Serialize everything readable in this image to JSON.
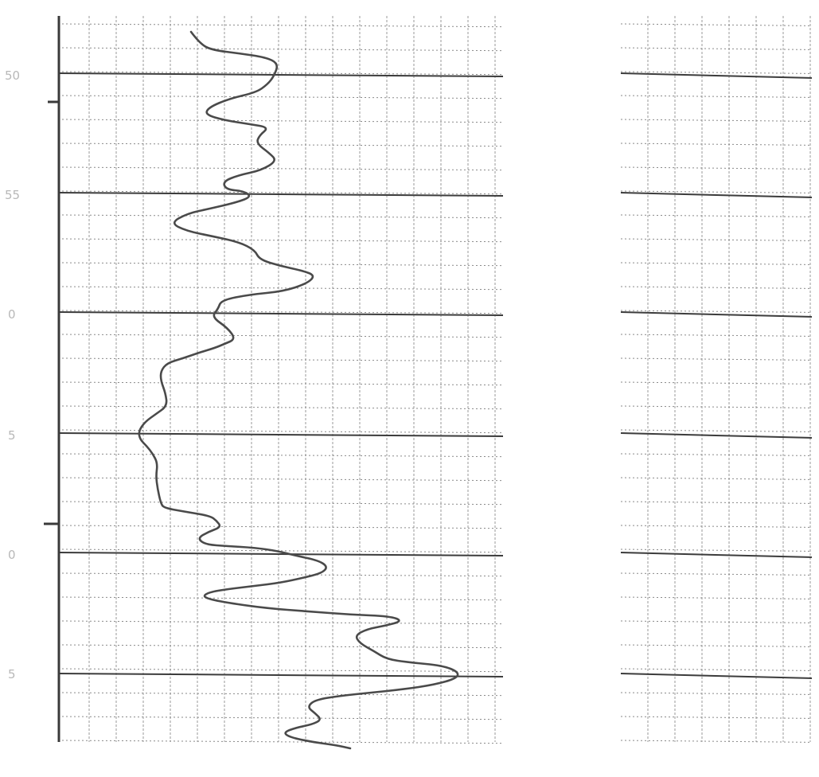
{
  "chart_data": {
    "type": "line",
    "title": "",
    "xlabel": "",
    "ylabel": "",
    "grid": true,
    "y_axis": {
      "orientation": "depth-downward",
      "major_ticks": [
        50,
        55,
        0,
        5,
        0,
        5
      ]
    },
    "tick_labels": [
      "50",
      "55",
      "0",
      "5",
      "0",
      "5"
    ],
    "series": [
      {
        "curve": [
          [
            240,
            40
          ],
          [
            252,
            56
          ],
          [
            268,
            63
          ],
          [
            300,
            67
          ],
          [
            334,
            72
          ],
          [
            350,
            80
          ],
          [
            344,
            96
          ],
          [
            336,
            106
          ],
          [
            322,
            116
          ],
          [
            288,
            124
          ],
          [
            262,
            135
          ],
          [
            258,
            144
          ],
          [
            282,
            151
          ],
          [
            314,
            156
          ],
          [
            338,
            160
          ],
          [
            326,
            170
          ],
          [
            322,
            180
          ],
          [
            338,
            192
          ],
          [
            348,
            202
          ],
          [
            328,
            214
          ],
          [
            300,
            220
          ],
          [
            280,
            228
          ],
          [
            284,
            238
          ],
          [
            306,
            240
          ],
          [
            316,
            247
          ],
          [
            298,
            254
          ],
          [
            264,
            262
          ],
          [
            236,
            268
          ],
          [
            214,
            280
          ],
          [
            234,
            290
          ],
          [
            268,
            297
          ],
          [
            300,
            304
          ],
          [
            320,
            314
          ],
          [
            326,
            326
          ],
          [
            352,
            334
          ],
          [
            380,
            340
          ],
          [
            396,
            346
          ],
          [
            386,
            356
          ],
          [
            356,
            366
          ],
          [
            314,
            370
          ],
          [
            278,
            377
          ],
          [
            274,
            388
          ],
          [
            266,
            398
          ],
          [
            286,
            412
          ],
          [
            296,
            426
          ],
          [
            282,
            432
          ],
          [
            270,
            437
          ],
          [
            250,
            443
          ],
          [
            230,
            450
          ],
          [
            210,
            456
          ],
          [
            202,
            466
          ],
          [
            202,
            478
          ],
          [
            208,
            494
          ],
          [
            210,
            510
          ],
          [
            196,
            520
          ],
          [
            182,
            530
          ],
          [
            174,
            542
          ],
          [
            176,
            552
          ],
          [
            184,
            560
          ],
          [
            192,
            570
          ],
          [
            198,
            582
          ],
          [
            196,
            598
          ],
          [
            198,
            614
          ],
          [
            202,
            632
          ],
          [
            206,
            638
          ],
          [
            234,
            643
          ],
          [
            264,
            648
          ],
          [
            272,
            654
          ],
          [
            278,
            662
          ],
          [
            262,
            668
          ],
          [
            248,
            676
          ],
          [
            258,
            684
          ],
          [
            286,
            686
          ],
          [
            320,
            688
          ],
          [
            348,
            692
          ],
          [
            372,
            698
          ],
          [
            400,
            704
          ],
          [
            412,
            712
          ],
          [
            404,
            720
          ],
          [
            380,
            726
          ],
          [
            352,
            732
          ],
          [
            320,
            736
          ],
          [
            286,
            740
          ],
          [
            262,
            744
          ],
          [
            254,
            750
          ],
          [
            278,
            756
          ],
          [
            334,
            764
          ],
          [
            388,
            768
          ],
          [
            440,
            772
          ],
          [
            490,
            774
          ],
          [
            506,
            780
          ],
          [
            484,
            786
          ],
          [
            462,
            790
          ],
          [
            446,
            798
          ],
          [
            452,
            808
          ],
          [
            470,
            818
          ],
          [
            486,
            828
          ],
          [
            514,
            832
          ],
          [
            556,
            836
          ],
          [
            576,
            844
          ],
          [
            574,
            852
          ],
          [
            546,
            860
          ],
          [
            506,
            866
          ],
          [
            466,
            870
          ],
          [
            428,
            874
          ],
          [
            396,
            879
          ],
          [
            386,
            888
          ],
          [
            396,
            896
          ],
          [
            404,
            904
          ],
          [
            392,
            910
          ],
          [
            372,
            914
          ],
          [
            356,
            920
          ],
          [
            364,
            926
          ],
          [
            392,
            932
          ],
          [
            422,
            936
          ],
          [
            440,
            940
          ]
        ]
      }
    ]
  }
}
